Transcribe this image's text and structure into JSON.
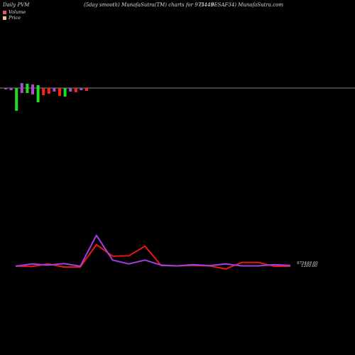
{
  "header": {
    "left": "Daily PVM",
    "middle": "(5day smooth) MunafaSutra(TM) charts for 975449",
    "right": "(1110ESAF34) MunafaSutra.com"
  },
  "legend": [
    {
      "label": "Volume",
      "color": "#e8507a"
    },
    {
      "label": "Price",
      "color": "#f0c080"
    }
  ],
  "chart_data": {
    "type": "line",
    "volume_panel": {
      "type": "bar",
      "baseline_label": "",
      "values_pos": [
        0,
        0,
        0,
        7,
        6,
        5,
        4,
        0,
        0,
        0,
        0,
        0,
        0,
        0,
        0,
        0
      ],
      "values_neg": [
        -2,
        -3,
        -32,
        -7,
        -7,
        -9,
        -20,
        -10,
        -8,
        -5,
        -11,
        -12,
        -5,
        -6,
        -3,
        -4
      ],
      "colors": [
        "#a64fc8",
        "#a64fc8",
        "#22dd22",
        "#a64fc8",
        "#22dd22",
        "#a64fc8",
        "#22dd22",
        "#ff2020",
        "#ff2020",
        "#a64fc8",
        "#ff2020",
        "#22dd22",
        "#a64fc8",
        "#ff2020",
        "#a64fc8",
        "#ff2020"
      ]
    },
    "series": [
      {
        "color": "#e81818",
        "values": [
          204.2,
          203.6,
          207.0,
          203.0,
          203.0,
          232.0,
          217.0,
          217.5,
          230.0,
          205.0,
          204.5,
          205.2,
          204.5,
          200.5,
          209.0,
          209.0,
          204.0,
          204.0
        ]
      },
      {
        "color": "#a040e0",
        "values": [
          204.0,
          207.0,
          205.5,
          207.5,
          204.0,
          244.0,
          212.0,
          207.0,
          212.0,
          205.5,
          204.5,
          206.0,
          204.8,
          207.0,
          204.5,
          204.5,
          206.0,
          205.0
        ]
      }
    ],
    "price_label": "975449.00",
    "price_label_value": "1200.00"
  }
}
